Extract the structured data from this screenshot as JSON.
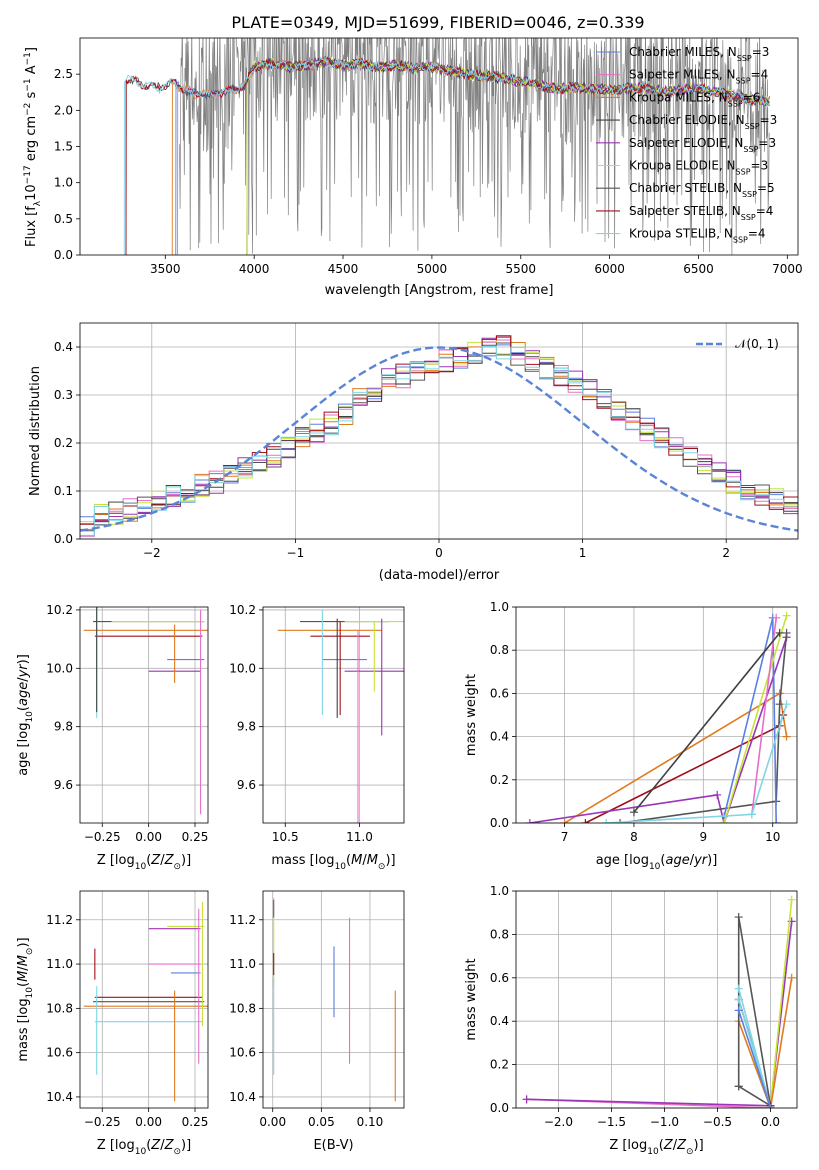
{
  "figure_title": "PLATE=0349, MJD=51699, FIBERID=0046, z=0.339",
  "colors": {
    "Chabrier MILES": "#5b7fe0",
    "Salpeter MILES": "#e66fc8",
    "Kroupa MILES": "#e07a1f",
    "Chabrier ELODIE": "#404040",
    "Salpeter ELODIE": "#9b34b8",
    "Kroupa ELODIE": "#c8e23a",
    "Chabrier STELIB": "#555555",
    "Salpeter STELIB": "#a0101a",
    "Kroupa STELIB": "#7fd6e6",
    "data": "#808080",
    "normal": "#5b84d8"
  },
  "chart_data": [
    {
      "id": "spectrum",
      "type": "line",
      "title": "PLATE=0349, MJD=51699, FIBERID=0046, z=0.339",
      "xlabel": "wavelength [Angstrom, rest frame]",
      "ylabel": "Flux [f_λ 10^-17 erg cm^-2 s^-1 A^-1]",
      "xlim": [
        3020,
        7060
      ],
      "ylim": [
        0,
        3.0
      ],
      "xticks": [
        3500,
        4000,
        4500,
        5000,
        5500,
        6000,
        6500,
        7000
      ],
      "yticks": [
        0.0,
        0.5,
        1.0,
        1.5,
        2.0,
        2.5
      ],
      "grid": false,
      "legend_position": "top-right",
      "legend": [
        {
          "name": "Chabrier MILES, N_SSP=3",
          "base": "Chabrier MILES, N",
          "sub": "SSP",
          "tail": "=3",
          "color_key": "Chabrier MILES"
        },
        {
          "name": "Salpeter MILES, N_SSP=4",
          "base": "Salpeter MILES, N",
          "sub": "SSP",
          "tail": "=4",
          "color_key": "Salpeter MILES"
        },
        {
          "name": "Kroupa MILES, N_SSP=6",
          "base": "Kroupa MILES, N",
          "sub": "SSP",
          "tail": "=6",
          "color_key": "Kroupa MILES"
        },
        {
          "name": "Chabrier ELODIE, N_SSP=3",
          "base": "Chabrier ELODIE, N",
          "sub": "SSP",
          "tail": "=3",
          "color_key": "Chabrier ELODIE"
        },
        {
          "name": "Salpeter ELODIE, N_SSP=3",
          "base": "Salpeter ELODIE, N",
          "sub": "SSP",
          "tail": "=3",
          "color_key": "Salpeter ELODIE"
        },
        {
          "name": "Kroupa ELODIE, N_SSP=3",
          "base": "Kroupa ELODIE, N",
          "sub": "SSP",
          "tail": "=3",
          "color_key": "Kroupa ELODIE"
        },
        {
          "name": "Chabrier STELIB, N_SSP=5",
          "base": "Chabrier STELIB, N",
          "sub": "SSP",
          "tail": "=5",
          "color_key": "Chabrier STELIB"
        },
        {
          "name": "Salpeter STELIB, N_SSP=4",
          "base": "Salpeter STELIB, N",
          "sub": "SSP",
          "tail": "=4",
          "color_key": "Salpeter STELIB"
        },
        {
          "name": "Kroupa STELIB, N_SSP=4",
          "base": "Kroupa STELIB, N",
          "sub": "SSP",
          "tail": "=4",
          "color_key": "Kroupa STELIB"
        }
      ],
      "model_continuum": {
        "x": [
          3250,
          3270,
          3300,
          3350,
          3400,
          3450,
          3500,
          3550,
          3600,
          3650,
          3700,
          3750,
          3800,
          3850,
          3900,
          3950,
          4000,
          4100,
          4200,
          4300,
          4400,
          4500,
          4600,
          4700,
          4800,
          4900,
          5000,
          5100,
          5200,
          5300,
          5400,
          5500,
          5600,
          5700,
          5800,
          5900,
          6000,
          6100,
          6200,
          6300,
          6400,
          6500,
          6600,
          6700,
          6800,
          6900
        ],
        "y": [
          2.0,
          2.45,
          2.42,
          2.38,
          2.35,
          2.3,
          2.35,
          2.38,
          2.3,
          2.22,
          2.25,
          2.2,
          2.25,
          2.25,
          2.3,
          2.35,
          2.6,
          2.65,
          2.6,
          2.62,
          2.68,
          2.62,
          2.65,
          2.6,
          2.62,
          2.58,
          2.6,
          2.55,
          2.5,
          2.48,
          2.45,
          2.4,
          2.35,
          2.3,
          2.32,
          2.3,
          2.28,
          2.3,
          2.32,
          2.25,
          2.28,
          2.3,
          2.25,
          2.2,
          2.15,
          2.12
        ]
      },
      "model_start_wavelengths": {
        "Kroupa STELIB": 3270,
        "Kroupa MILES": 3540,
        "Salpeter MILES": 3570,
        "Chabrier MILES": 3560,
        "Kroupa ELODIE": 3960,
        "Salpeter ELODIE": 3960,
        "Chabrier ELODIE": 3960
      },
      "data_range": [
        3580,
        6900
      ]
    },
    {
      "id": "residual-hist",
      "type": "bar",
      "xlabel": "(data-model)/error",
      "ylabel": "Normed distribution",
      "xlim": [
        -2.5,
        2.5
      ],
      "ylim": [
        0,
        0.45
      ],
      "xticks": [
        -2,
        -1,
        0,
        1,
        2
      ],
      "yticks": [
        0.0,
        0.1,
        0.2,
        0.3,
        0.4
      ],
      "grid": true,
      "legend_position": "top-right",
      "legend": [
        {
          "label": "𝒩(0, 1)",
          "color_key": "normal"
        }
      ],
      "bins": [
        -2.5,
        2.5,
        50
      ],
      "base_values": [
        0.03,
        0.05,
        0.055,
        0.06,
        0.07,
        0.085,
        0.09,
        0.1,
        0.11,
        0.12,
        0.13,
        0.15,
        0.16,
        0.175,
        0.19,
        0.21,
        0.225,
        0.24,
        0.26,
        0.29,
        0.31,
        0.33,
        0.34,
        0.35,
        0.36,
        0.37,
        0.38,
        0.39,
        0.395,
        0.4,
        0.385,
        0.37,
        0.355,
        0.34,
        0.33,
        0.31,
        0.29,
        0.27,
        0.25,
        0.23,
        0.21,
        0.19,
        0.17,
        0.15,
        0.14,
        0.12,
        0.1,
        0.09,
        0.08,
        0.07
      ]
    },
    {
      "id": "age-vs-Z",
      "type": "scatter",
      "xlabel": "Z [log10(Z/Z⊙)]",
      "ylabel": "age [log10(age/yr)]",
      "xlim": [
        -0.37,
        0.32
      ],
      "ylim": [
        9.47,
        10.21
      ],
      "xticks": [
        -0.25,
        0.0,
        0.25
      ],
      "yticks": [
        9.6,
        9.8,
        10.0,
        10.2
      ],
      "grid": true,
      "errorbars": [
        {
          "color_key": "Kroupa MILES",
          "x": 0.0,
          "y": 10.13,
          "xerr": 0.35,
          "yerr": 0.0
        },
        {
          "color_key": "Chabrier STELIB",
          "x": 0.0,
          "y": 10.16,
          "xerr": 0.3,
          "yerr": 0.0
        },
        {
          "color_key": "Kroupa ELODIE",
          "x": 0.05,
          "y": 10.16,
          "xerr": 0.25,
          "yerr": 0.0
        },
        {
          "color_key": "Salpeter STELIB",
          "x": 0.0,
          "y": 10.11,
          "xerr": 0.29,
          "yerr": 0.0
        },
        {
          "color_key": "Kroupa STELIB",
          "x": -0.28,
          "y": 10.1,
          "xerr": 0.0,
          "yerr": 0.27
        },
        {
          "color_key": "Chabrier ELODIE",
          "x": -0.28,
          "y": 10.15,
          "xerr": 0.0,
          "yerr": 0.3
        },
        {
          "color_key": "Chabrier MILES",
          "x": 0.2,
          "y": 10.03,
          "xerr": 0.1,
          "yerr": 0.0
        },
        {
          "color_key": "Salpeter ELODIE",
          "x": 0.14,
          "y": 9.99,
          "xerr": 0.14,
          "yerr": 0.0
        },
        {
          "color_key": "Salpeter MILES",
          "x": 0.28,
          "y": 9.85,
          "xerr": 0.0,
          "yerr": 0.35
        },
        {
          "color_key": "Kroupa MILES",
          "x": 0.14,
          "y": 10.05,
          "xerr": 0.0,
          "yerr": 0.1
        }
      ]
    },
    {
      "id": "age-vs-mass",
      "type": "scatter",
      "xlabel": "mass [log10(M/M⊙)]",
      "ylabel": "",
      "xlim": [
        10.35,
        11.3
      ],
      "ylim": [
        9.47,
        10.21
      ],
      "xticks": [
        10.5,
        11.0
      ],
      "yticks": [
        9.6,
        9.8,
        10.0,
        10.2
      ],
      "grid": true,
      "errorbars": [
        {
          "color_key": "Kroupa MILES",
          "x": 10.8,
          "y": 10.13,
          "xerr": 0.35,
          "yerr": 0.0
        },
        {
          "color_key": "Chabrier STELIB",
          "x": 10.9,
          "y": 10.16,
          "xerr": 0.3,
          "yerr": 0.0
        },
        {
          "color_key": "Kroupa ELODIE",
          "x": 11.1,
          "y": 10.16,
          "xerr": 0.2,
          "yerr": 0.0
        },
        {
          "color_key": "Salpeter STELIB",
          "x": 10.87,
          "y": 10.11,
          "xerr": 0.2,
          "yerr": 0.0
        },
        {
          "color_key": "Chabrier MILES",
          "x": 10.9,
          "y": 10.03,
          "xerr": 0.15,
          "yerr": 0.0
        },
        {
          "color_key": "Salpeter ELODIE",
          "x": 11.1,
          "y": 9.99,
          "xerr": 0.2,
          "yerr": 0.0
        },
        {
          "color_key": "Kroupa STELIB",
          "x": 10.75,
          "y": 10.02,
          "xerr": 0.0,
          "yerr": 0.18
        },
        {
          "color_key": "Chabrier ELODIE",
          "x": 10.85,
          "y": 10.0,
          "xerr": 0.0,
          "yerr": 0.17
        },
        {
          "color_key": "Salpeter STELIB",
          "x": 10.87,
          "y": 10.0,
          "xerr": 0.0,
          "yerr": 0.16
        },
        {
          "color_key": "Salpeter MILES",
          "x": 10.99,
          "y": 9.8,
          "xerr": 0.0,
          "yerr": 0.33
        },
        {
          "color_key": "Salpeter ELODIE",
          "x": 11.15,
          "y": 9.97,
          "xerr": 0.0,
          "yerr": 0.2
        },
        {
          "color_key": "Kroupa ELODIE",
          "x": 11.1,
          "y": 10.04,
          "xerr": 0.0,
          "yerr": 0.12
        }
      ]
    },
    {
      "id": "weight-vs-age",
      "type": "line",
      "xlabel": "age [log10(age/yr)]",
      "ylabel": "mass weight",
      "xlim": [
        6.3,
        10.35
      ],
      "ylim": [
        0,
        1.0
      ],
      "xticks": [
        7,
        8,
        9,
        10
      ],
      "yticks": [
        0.0,
        0.2,
        0.4,
        0.6,
        0.8,
        1.0
      ],
      "grid": true,
      "series": [
        {
          "color_key": "Kroupa MILES",
          "x": [
            7.0,
            10.1,
            10.2
          ],
          "y": [
            0.0,
            0.6,
            0.4
          ]
        },
        {
          "color_key": "Salpeter STELIB",
          "x": [
            7.3,
            10.1,
            10.15
          ],
          "y": [
            0.0,
            0.45,
            0.5
          ]
        },
        {
          "color_key": "Salpeter ELODIE",
          "x": [
            6.5,
            9.2,
            9.3,
            10.2
          ],
          "y": [
            0.0,
            0.13,
            0.0,
            0.86
          ]
        },
        {
          "color_key": "Chabrier STELIB",
          "x": [
            7.8,
            10.05,
            10.1,
            10.2
          ],
          "y": [
            0.0,
            0.1,
            0.55,
            0.88
          ]
        },
        {
          "color_key": "Chabrier MILES",
          "x": [
            9.3,
            10.0,
            10.05
          ],
          "y": [
            0.03,
            0.95,
            0.0
          ]
        },
        {
          "color_key": "Kroupa ELODIE",
          "x": [
            9.3,
            10.2
          ],
          "y": [
            0.0,
            0.96
          ]
        },
        {
          "color_key": "Salpeter MILES",
          "x": [
            9.7,
            10.05
          ],
          "y": [
            0.04,
            0.95
          ]
        },
        {
          "color_key": "Kroupa STELIB",
          "x": [
            7.6,
            9.7,
            10.2
          ],
          "y": [
            0.0,
            0.04,
            0.55
          ]
        },
        {
          "color_key": "Chabrier ELODIE",
          "x": [
            8.0,
            10.1
          ],
          "y": [
            0.05,
            0.88
          ]
        }
      ]
    },
    {
      "id": "mass-vs-Z",
      "type": "scatter",
      "xlabel": "Z [log10(Z/Z⊙)]",
      "ylabel": "mass [log10(M/M⊙)]",
      "xlim": [
        -0.37,
        0.32
      ],
      "ylim": [
        10.35,
        11.33
      ],
      "xticks": [
        -0.25,
        0.0,
        0.25
      ],
      "yticks": [
        10.4,
        10.6,
        10.8,
        11.0,
        11.2
      ],
      "grid": true,
      "errorbars": [
        {
          "color_key": "Salpeter STELIB",
          "x": 0.0,
          "y": 10.85,
          "xerr": 0.29,
          "yerr": 0.0
        },
        {
          "color_key": "Chabrier STELIB",
          "x": 0.0,
          "y": 10.83,
          "xerr": 0.3,
          "yerr": 0.0
        },
        {
          "color_key": "Kroupa MILES",
          "x": 0.0,
          "y": 10.81,
          "xerr": 0.35,
          "yerr": 0.0
        },
        {
          "color_key": "Kroupa STELIB",
          "x": 0.0,
          "y": 10.74,
          "xerr": 0.29,
          "yerr": 0.0
        },
        {
          "color_key": "Salpeter ELODIE",
          "x": 0.14,
          "y": 11.16,
          "xerr": 0.14,
          "yerr": 0.0
        },
        {
          "color_key": "Kroupa ELODIE",
          "x": 0.2,
          "y": 11.17,
          "xerr": 0.1,
          "yerr": 0.0
        },
        {
          "color_key": "Salpeter MILES",
          "x": 0.14,
          "y": 11.0,
          "xerr": 0.14,
          "yerr": 0.0
        },
        {
          "color_key": "Chabrier MILES",
          "x": 0.2,
          "y": 10.96,
          "xerr": 0.08,
          "yerr": 0.0
        },
        {
          "color_key": "Salpeter STELIB",
          "x": -0.29,
          "y": 11.0,
          "xerr": 0.0,
          "yerr": 0.07
        },
        {
          "color_key": "Kroupa STELIB",
          "x": -0.28,
          "y": 10.7,
          "xerr": 0.0,
          "yerr": 0.2
        },
        {
          "color_key": "Kroupa MILES",
          "x": 0.14,
          "y": 10.63,
          "xerr": 0.0,
          "yerr": 0.25
        },
        {
          "color_key": "Salpeter MILES",
          "x": 0.27,
          "y": 10.9,
          "xerr": 0.0,
          "yerr": 0.35
        },
        {
          "color_key": "Kroupa ELODIE",
          "x": 0.29,
          "y": 11.0,
          "xerr": 0.0,
          "yerr": 0.28
        }
      ]
    },
    {
      "id": "mass-vs-EBV",
      "type": "scatter",
      "xlabel": "E(B-V)",
      "ylabel": "",
      "xlim": [
        -0.01,
        0.135
      ],
      "ylim": [
        10.35,
        11.33
      ],
      "xticks": [
        0.0,
        0.05,
        0.1
      ],
      "yticks": [
        10.4,
        10.6,
        10.8,
        11.0,
        11.2
      ],
      "grid": true,
      "errorbars": [
        {
          "color_key": "Chabrier MILES",
          "x": 0.063,
          "y": 10.92,
          "xerr": 0.0,
          "yerr": 0.16
        },
        {
          "color_key": "Salpeter MILES",
          "x": 0.079,
          "y": 10.88,
          "xerr": 0.0,
          "yerr": 0.33
        },
        {
          "color_key": "Kroupa MILES",
          "x": 0.126,
          "y": 10.63,
          "xerr": 0.0,
          "yerr": 0.25
        },
        {
          "color_key": "Kroupa ELODIE",
          "x": 0.001,
          "y": 11.1,
          "xerr": 0.0,
          "yerr": 0.2
        },
        {
          "color_key": "Salpeter STELIB",
          "x": 0.001,
          "y": 11.0,
          "xerr": 0.0,
          "yerr": 0.05
        },
        {
          "color_key": "Kroupa STELIB",
          "x": 0.001,
          "y": 10.72,
          "xerr": 0.0,
          "yerr": 0.22
        },
        {
          "color_key": "Salpeter ELODIE",
          "x": 0.001,
          "y": 11.25,
          "xerr": 0.0,
          "yerr": 0.04
        }
      ]
    },
    {
      "id": "weight-vs-Z",
      "type": "line",
      "xlabel": "Z [log10(Z/Z⊙)]",
      "ylabel": "mass weight",
      "xlim": [
        -2.4,
        0.25
      ],
      "ylim": [
        0,
        1.0
      ],
      "xticks": [
        -2.0,
        -1.5,
        -1.0,
        -0.5,
        0.0
      ],
      "yticks": [
        0.0,
        0.2,
        0.4,
        0.6,
        0.8,
        1.0
      ],
      "grid": true,
      "series": [
        {
          "color_key": "Salpeter MILES",
          "x": [
            -2.3,
            0.0
          ],
          "y": [
            0.04,
            0.0
          ]
        },
        {
          "color_key": "Salpeter ELODIE",
          "x": [
            -2.3,
            0.0,
            0.2
          ],
          "y": [
            0.04,
            0.01,
            0.86
          ]
        },
        {
          "color_key": "Kroupa ELODIE",
          "x": [
            0.0,
            0.2
          ],
          "y": [
            0.01,
            0.96
          ]
        },
        {
          "color_key": "Kroupa MILES",
          "x": [
            -0.3,
            0.0,
            0.2
          ],
          "y": [
            0.4,
            0.0,
            0.6
          ]
        },
        {
          "color_key": "Chabrier STELIB",
          "x": [
            -0.3,
            -0.3,
            0.0,
            -0.3
          ],
          "y": [
            0.1,
            0.88,
            0.01,
            0.1
          ]
        },
        {
          "color_key": "Salpeter STELIB",
          "x": [
            -0.3,
            0.0
          ],
          "y": [
            0.5,
            0.01
          ]
        },
        {
          "color_key": "Kroupa STELIB",
          "x": [
            -0.3,
            0.0,
            -0.3
          ],
          "y": [
            0.55,
            0.0,
            0.5
          ]
        },
        {
          "color_key": "Chabrier MILES",
          "x": [
            -0.3,
            0.0
          ],
          "y": [
            0.45,
            0.0
          ]
        }
      ]
    }
  ]
}
